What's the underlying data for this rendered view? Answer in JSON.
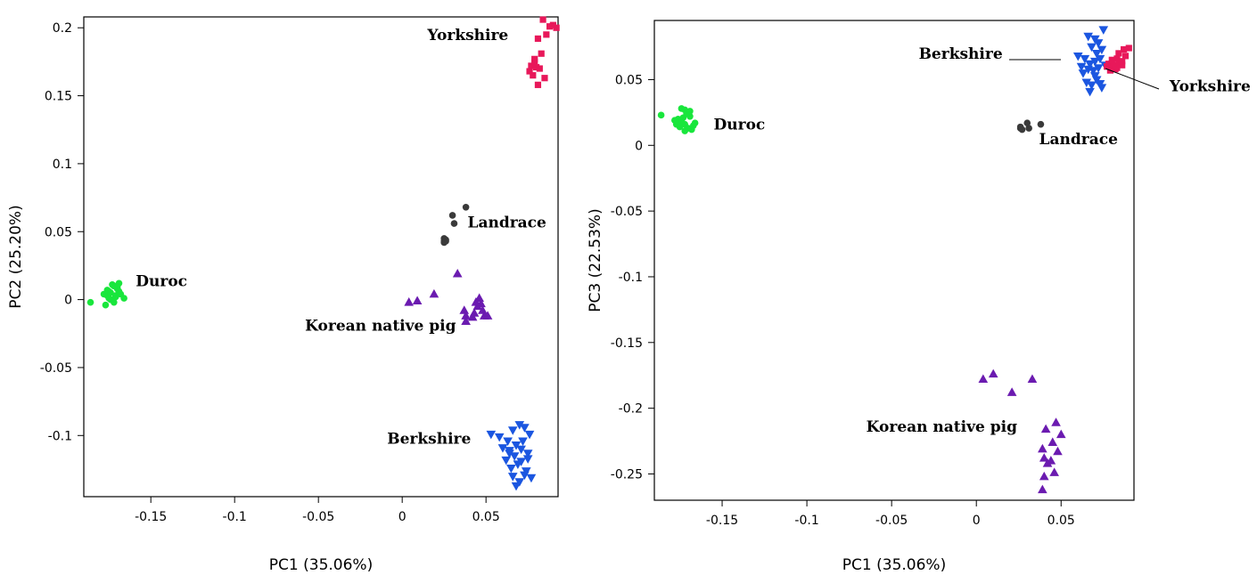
{
  "chart_data": [
    {
      "type": "scatter",
      "title": "",
      "xlabel": "PC1 (35.06%)",
      "ylabel": "PC2 (25.20%)",
      "xlim": [
        -0.19,
        0.093
      ],
      "ylim": [
        -0.145,
        0.208
      ],
      "x_ticks": [
        -0.15,
        -0.1,
        -0.05,
        0,
        0.05
      ],
      "x_tick_labels": [
        "-0.15",
        "-0.1",
        "-0.05",
        "0",
        "0.05"
      ],
      "y_ticks": [
        -0.1,
        -0.05,
        0,
        0.05,
        0.1,
        0.15,
        0.2
      ],
      "y_tick_labels": [
        "-0.1",
        "-0.05",
        "0",
        "0.05",
        "0.1",
        "0.15",
        "0.2"
      ],
      "grid": false,
      "legend": "none",
      "series": [
        {
          "label": "Yorkshire",
          "label_pos": [
            0.015,
            0.191
          ],
          "color": "#e8185a",
          "marker": "square",
          "x": [
            0.084,
            0.088,
            0.086,
            0.09,
            0.092,
            0.081,
            0.083,
            0.079,
            0.077,
            0.08,
            0.082,
            0.076,
            0.078,
            0.081,
            0.085,
            0.079
          ],
          "y": [
            0.206,
            0.201,
            0.195,
            0.202,
            0.2,
            0.192,
            0.181,
            0.177,
            0.172,
            0.171,
            0.17,
            0.168,
            0.165,
            0.158,
            0.163,
            0.175
          ]
        },
        {
          "label": "Landrace",
          "label_pos": [
            0.039,
            0.053
          ],
          "color": "#3a3a3a",
          "marker": "circle",
          "x": [
            0.03,
            0.038,
            0.031,
            0.025,
            0.026,
            0.025,
            0.026,
            0.025
          ],
          "y": [
            0.062,
            0.068,
            0.056,
            0.045,
            0.043,
            0.042,
            0.044,
            0.043
          ]
        },
        {
          "label": "Duroc",
          "label_pos": [
            -0.159,
            0.01
          ],
          "color": "#19e63c",
          "marker": "circle",
          "x": [
            -0.186,
            -0.176,
            -0.17,
            -0.178,
            -0.175,
            -0.172,
            -0.169,
            -0.174,
            -0.171,
            -0.176,
            -0.173,
            -0.168,
            -0.17,
            -0.177,
            -0.172,
            -0.166,
            -0.174,
            -0.171,
            -0.169,
            -0.175
          ],
          "y": [
            -0.002,
            0.003,
            0.008,
            0.004,
            0.006,
            0.01,
            0.012,
            0.0,
            0.002,
            0.007,
            0.011,
            0.004,
            0.009,
            -0.004,
            -0.002,
            0.001,
            0.005,
            0.003,
            0.006,
            0.001
          ],
          "w": 0
        },
        {
          "label": "Korean native pig",
          "label_pos": [
            -0.058,
            -0.023
          ],
          "color": "#6b1bb0",
          "marker": "triangle-up",
          "x": [
            0.004,
            0.009,
            0.019,
            0.033,
            0.037,
            0.038,
            0.043,
            0.045,
            0.047,
            0.049,
            0.051,
            0.038,
            0.044,
            0.046,
            0.042,
            0.048
          ],
          "y": [
            -0.002,
            -0.001,
            0.004,
            0.019,
            -0.008,
            -0.012,
            -0.01,
            -0.005,
            -0.003,
            -0.012,
            -0.012,
            -0.016,
            -0.002,
            0.001,
            -0.013,
            -0.008
          ],
          "w": 0
        },
        {
          "label": "Berkshire",
          "label_pos": [
            -0.009,
            -0.106
          ],
          "color": "#1b56e0",
          "marker": "triangle-down",
          "x": [
            0.053,
            0.058,
            0.063,
            0.066,
            0.07,
            0.073,
            0.076,
            0.06,
            0.064,
            0.068,
            0.072,
            0.075,
            0.062,
            0.067,
            0.071,
            0.065,
            0.069,
            0.074,
            0.077,
            0.066,
            0.07,
            0.073,
            0.068,
            0.064,
            0.071,
            0.075
          ],
          "y": [
            -0.099,
            -0.101,
            -0.104,
            -0.096,
            -0.092,
            -0.094,
            -0.099,
            -0.109,
            -0.111,
            -0.107,
            -0.104,
            -0.113,
            -0.118,
            -0.115,
            -0.119,
            -0.124,
            -0.121,
            -0.126,
            -0.131,
            -0.13,
            -0.134,
            -0.129,
            -0.137,
            -0.113,
            -0.11,
            -0.117
          ]
        }
      ]
    },
    {
      "type": "scatter",
      "title": "",
      "xlabel": "PC1 (35.06%)",
      "ylabel": "PC3 (22.53%)",
      "xlim": [
        -0.19,
        0.093
      ],
      "ylim": [
        -0.27,
        0.095
      ],
      "x_ticks": [
        -0.15,
        -0.1,
        -0.05,
        0,
        0.05
      ],
      "x_tick_labels": [
        "-0.15",
        "-0.1",
        "-0.05",
        "0",
        "0.05"
      ],
      "y_ticks": [
        -0.25,
        -0.2,
        -0.15,
        -0.1,
        -0.05,
        0,
        0.05
      ],
      "y_tick_labels": [
        "-0.25",
        "-0.2",
        "-0.15",
        "-0.1",
        "-0.05",
        "0",
        "0.05"
      ],
      "grid": false,
      "legend": "none",
      "series": [
        {
          "label": "Berkshire",
          "label_pos": [
            -0.034,
            0.066
          ],
          "color": "#1b56e0",
          "marker": "triangle-down",
          "x": [
            0.066,
            0.07,
            0.075,
            0.068,
            0.072,
            0.06,
            0.064,
            0.071,
            0.074,
            0.062,
            0.067,
            0.07,
            0.073,
            0.063,
            0.066,
            0.069,
            0.072,
            0.076,
            0.065,
            0.068,
            0.071,
            0.074,
            0.067,
            0.07,
            0.073
          ],
          "y": [
            0.083,
            0.081,
            0.088,
            0.075,
            0.078,
            0.068,
            0.066,
            0.07,
            0.073,
            0.06,
            0.062,
            0.064,
            0.066,
            0.055,
            0.058,
            0.057,
            0.059,
            0.061,
            0.048,
            0.046,
            0.05,
            0.044,
            0.041,
            0.053,
            0.047
          ]
        },
        {
          "label": "Yorkshire",
          "label_pos": [
            0.114,
            0.041
          ],
          "color": "#e8185a",
          "marker": "square",
          "x": [
            0.087,
            0.09,
            0.084,
            0.088,
            0.08,
            0.083,
            0.086,
            0.078,
            0.081,
            0.084,
            0.077,
            0.08,
            0.083,
            0.086,
            0.079,
            0.082
          ],
          "y": [
            0.073,
            0.074,
            0.07,
            0.068,
            0.065,
            0.066,
            0.064,
            0.062,
            0.061,
            0.063,
            0.06,
            0.058,
            0.059,
            0.061,
            0.057,
            0.058
          ]
        },
        {
          "label": "Landrace",
          "label_pos": [
            0.037,
            0.001
          ],
          "color": "#3a3a3a",
          "marker": "circle",
          "x": [
            0.03,
            0.038,
            0.031,
            0.026,
            0.027,
            0.026
          ],
          "y": [
            0.017,
            0.016,
            0.013,
            0.014,
            0.012,
            0.013
          ]
        },
        {
          "label": "Duroc",
          "label_pos": [
            -0.155,
            0.012
          ],
          "color": "#19e63c",
          "marker": "circle",
          "x": [
            -0.186,
            -0.176,
            -0.172,
            -0.169,
            -0.174,
            -0.17,
            -0.166,
            -0.178,
            -0.175,
            -0.172,
            -0.168,
            -0.173,
            -0.17,
            -0.177,
            -0.171,
            -0.167,
            -0.174,
            -0.169,
            -0.175,
            -0.172
          ],
          "y": [
            0.023,
            0.02,
            0.027,
            0.022,
            0.018,
            0.025,
            0.017,
            0.019,
            0.014,
            0.016,
            0.012,
            0.021,
            0.013,
            0.016,
            0.024,
            0.015,
            0.028,
            0.026,
            0.015,
            0.011
          ],
          "w": 0
        },
        {
          "label": "Korean native pig",
          "label_pos": [
            -0.065,
            -0.218
          ],
          "color": "#6b1bb0",
          "marker": "triangle-up",
          "x": [
            0.004,
            0.01,
            0.021,
            0.033,
            0.041,
            0.047,
            0.05,
            0.039,
            0.045,
            0.04,
            0.048,
            0.042,
            0.046,
            0.04,
            0.044,
            0.039
          ],
          "y": [
            -0.178,
            -0.174,
            -0.188,
            -0.178,
            -0.216,
            -0.211,
            -0.22,
            -0.231,
            -0.226,
            -0.238,
            -0.233,
            -0.242,
            -0.249,
            -0.252,
            -0.24,
            -0.262
          ],
          "w": 0
        }
      ]
    }
  ]
}
